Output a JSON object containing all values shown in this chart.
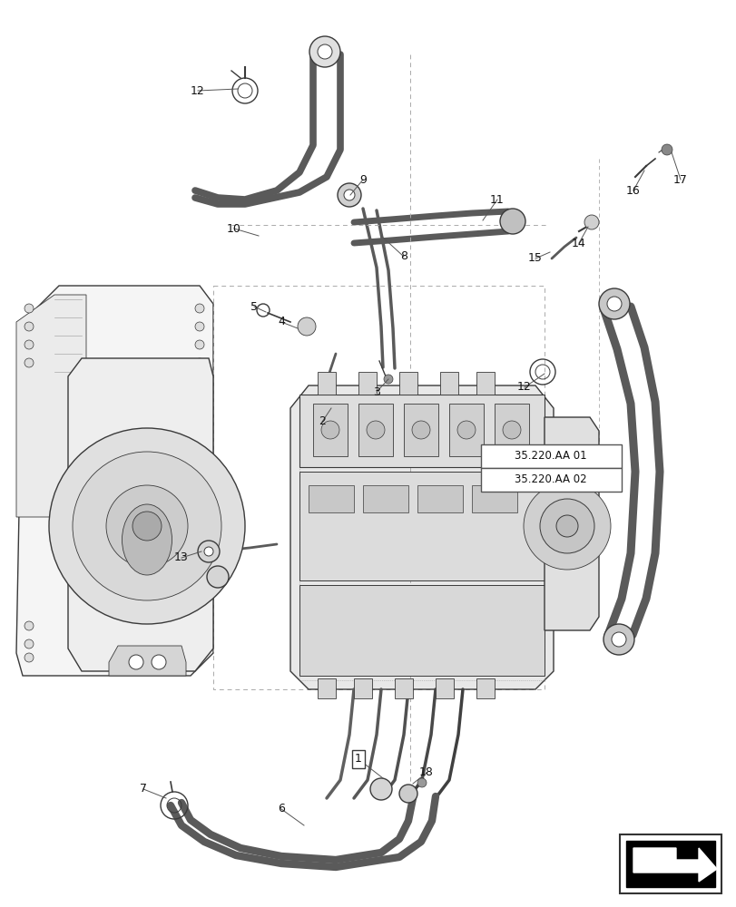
{
  "background_color": "#ffffff",
  "line_color": "#3a3a3a",
  "figsize": [
    8.12,
    10.0
  ],
  "dpi": 100,
  "ref_box1": "35.220.AA 01",
  "ref_box2": "35.220.AA 02"
}
